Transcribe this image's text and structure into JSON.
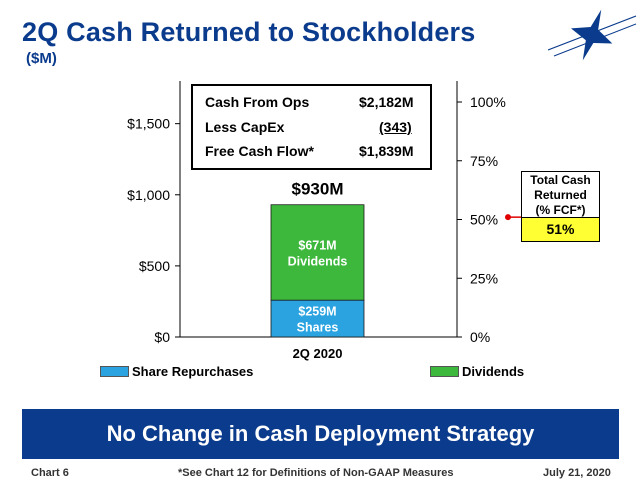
{
  "slide": {
    "title": "2Q Cash Returned to Stockholders",
    "subtitle": "($M)",
    "banner": "No Change in Cash Deployment Strategy",
    "footer_left": "Chart 6",
    "footer_center": "*See Chart 12 for Definitions of Non-GAAP Measures",
    "footer_right": "July 21, 2020"
  },
  "cash_flow_box": {
    "rows": [
      {
        "label": "Cash From Ops",
        "value": "$2,182M"
      },
      {
        "label": "Less CapEx",
        "value": "(343)"
      },
      {
        "label": "Free Cash Flow*",
        "value": "$1,839M"
      }
    ]
  },
  "total_cash_returned": {
    "title": "Total Cash\nReturned\n(% FCF*)",
    "value": "51%",
    "percent": 51
  },
  "colors": {
    "brand_blue": "#0b3b8c",
    "share_repurchases": "#2aa3e0",
    "dividends": "#3db83d",
    "highlight_yellow": "#ffff33",
    "marker_red": "#e00000"
  },
  "chart_data": {
    "type": "bar",
    "stacked": true,
    "categories": [
      "2Q 2020"
    ],
    "series": [
      {
        "name": "Share Repurchases",
        "values": [
          259
        ],
        "label": "$259M\nShares"
      },
      {
        "name": "Dividends",
        "values": [
          671
        ],
        "label": "$671M\nDividends"
      }
    ],
    "total_label": "$930M",
    "y_left": {
      "min": 0,
      "max": 1800,
      "ticks": [
        0,
        500,
        1000,
        1500
      ],
      "tick_labels": [
        "$0",
        "$500",
        "$1,000",
        "$1,500"
      ]
    },
    "y_right": {
      "min": 0,
      "max": 1839,
      "ticks": [
        0,
        25,
        50,
        75,
        100
      ],
      "tick_labels": [
        "0%",
        "25%",
        "50%",
        "75%",
        "100%"
      ]
    },
    "legend_placement": "bottom",
    "grid": false
  }
}
